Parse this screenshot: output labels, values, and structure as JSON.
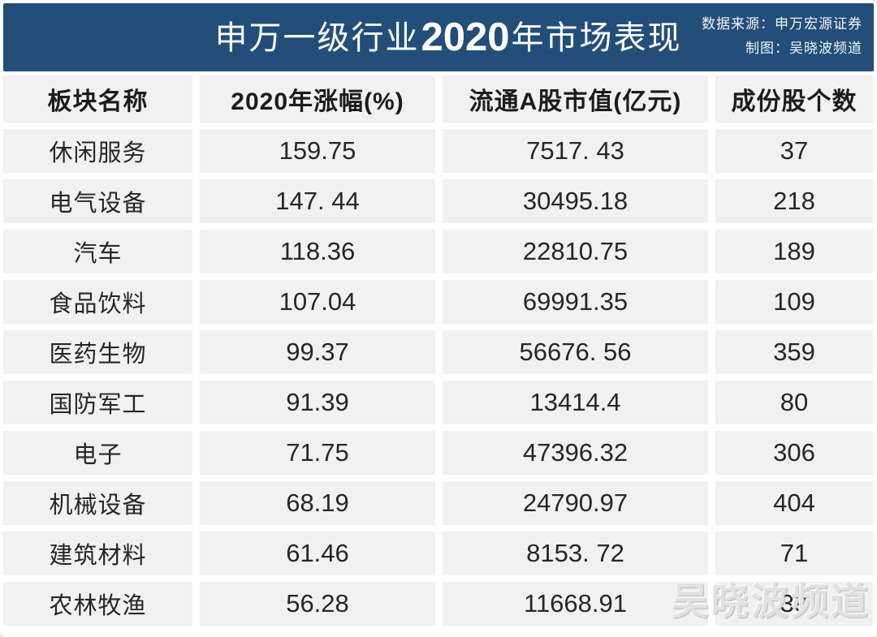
{
  "colors": {
    "band_bg": "#234E79",
    "cell_bg": "#F2F1F1",
    "text": "#262626",
    "title_text": "#FFFFFF",
    "watermark_text": "#E0E0E0"
  },
  "header": {
    "title_prefix": "申万一级行业",
    "title_year": "2020",
    "title_suffix": "年市场表现",
    "source_line1": "数据来源：申万宏源证券",
    "source_line2": "制图：吴晓波频道"
  },
  "table": {
    "columns": [
      "板块名称",
      "2020年涨幅(%)",
      "流通A股市值(亿元)",
      "成份股个数"
    ],
    "rows": [
      [
        "休闲服务",
        "159.75",
        "7517. 43",
        "37"
      ],
      [
        "电气设备",
        "147. 44",
        "30495.18",
        "218"
      ],
      [
        "汽车",
        "118.36",
        "22810.75",
        "189"
      ],
      [
        "食品饮料",
        "107.04",
        "69991.35",
        "109"
      ],
      [
        "医药生物",
        "99.37",
        "56676. 56",
        "359"
      ],
      [
        "国防军工",
        "91.39",
        "13414.4",
        "80"
      ],
      [
        "电子",
        "71.75",
        "47396.32",
        "306"
      ],
      [
        "机械设备",
        "68.19",
        "24790.97",
        "404"
      ],
      [
        "建筑材料",
        "61.46",
        "8153. 72",
        "71"
      ],
      [
        "农林牧渔",
        "56.28",
        "11668.91",
        "39"
      ]
    ]
  },
  "watermark": {
    "text": "吴晓波频道"
  },
  "chart_data": {
    "type": "table",
    "title": "申万一级行业2020年市场表现",
    "source": "数据来源：申万宏源证券",
    "credit": "制图：吴晓波频道",
    "columns": [
      "板块名称",
      "2020年涨幅(%)",
      "流通A股市值(亿元)",
      "成份股个数"
    ],
    "rows": [
      [
        "休闲服务",
        159.75,
        7517.43,
        37
      ],
      [
        "电气设备",
        147.44,
        30495.18,
        218
      ],
      [
        "汽车",
        118.36,
        22810.75,
        189
      ],
      [
        "食品饮料",
        107.04,
        69991.35,
        109
      ],
      [
        "医药生物",
        99.37,
        56676.56,
        359
      ],
      [
        "国防军工",
        91.39,
        13414.4,
        80
      ],
      [
        "电子",
        71.75,
        47396.32,
        306
      ],
      [
        "机械设备",
        68.19,
        24790.97,
        404
      ],
      [
        "建筑材料",
        61.46,
        8153.72,
        71
      ],
      [
        "农林牧渔",
        56.28,
        11668.91,
        39
      ]
    ]
  }
}
